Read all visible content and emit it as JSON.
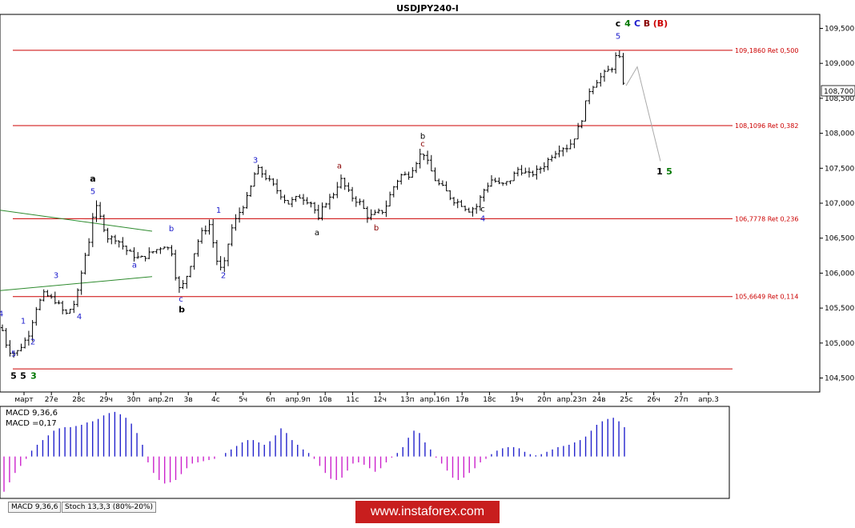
{
  "chart_data": {
    "type": "candlestick",
    "title": "USDJPY240-I",
    "current_price_label": "108,700",
    "y_axis": {
      "ylim": [
        104.3,
        109.7
      ],
      "ticks": [
        "109,500",
        "109,000",
        "108,500",
        "108,000",
        "107,500",
        "107,000",
        "106,500",
        "106,000",
        "105,500",
        "105,000",
        "104,500"
      ]
    },
    "x_ticks": [
      "март",
      "27е",
      "28с",
      "29ч",
      "30п",
      "апр.2п",
      "3в",
      "4с",
      "5ч",
      "6п",
      "апр.9п",
      "10в",
      "11с",
      "12ч",
      "13п",
      "апр.16п",
      "17в",
      "18с",
      "19ч",
      "20п",
      "апр.23п",
      "24в",
      "25с",
      "26ч",
      "27п",
      "апр.3"
    ],
    "fib_levels": [
      {
        "label": "109,1860 Ret 0,500",
        "value": 109.186
      },
      {
        "label": "108,1096 Ret 0,382",
        "value": 108.1096
      },
      {
        "label": "106,7778 Ret 0,236",
        "value": 106.7778
      },
      {
        "label": "105,6649 Ret 0,114",
        "value": 105.6649
      },
      {
        "label": "",
        "value": 104.63
      }
    ],
    "price_path": [
      [
        0,
        105.3
      ],
      [
        10,
        104.9
      ],
      [
        20,
        104.85
      ],
      [
        35,
        105.1
      ],
      [
        45,
        105.5
      ],
      [
        55,
        105.7
      ],
      [
        70,
        105.6
      ],
      [
        82,
        105.4
      ],
      [
        95,
        105.6
      ],
      [
        105,
        106.2
      ],
      [
        112,
        106.5
      ],
      [
        118,
        107.0
      ],
      [
        125,
        106.8
      ],
      [
        135,
        106.5
      ],
      [
        145,
        106.5
      ],
      [
        160,
        106.3
      ],
      [
        175,
        106.2
      ],
      [
        190,
        106.3
      ],
      [
        205,
        106.4
      ],
      [
        215,
        106.3
      ],
      [
        222,
        105.75
      ],
      [
        230,
        105.85
      ],
      [
        240,
        106.2
      ],
      [
        250,
        106.55
      ],
      [
        262,
        106.7
      ],
      [
        270,
        106.2
      ],
      [
        278,
        106.0
      ],
      [
        288,
        106.6
      ],
      [
        298,
        106.85
      ],
      [
        310,
        107.1
      ],
      [
        320,
        107.5
      ],
      [
        330,
        107.4
      ],
      [
        345,
        107.2
      ],
      [
        360,
        107.0
      ],
      [
        375,
        107.1
      ],
      [
        390,
        107.0
      ],
      [
        398,
        106.75
      ],
      [
        405,
        107.0
      ],
      [
        415,
        107.1
      ],
      [
        425,
        107.35
      ],
      [
        438,
        107.1
      ],
      [
        450,
        107.0
      ],
      [
        460,
        106.8
      ],
      [
        470,
        106.85
      ],
      [
        480,
        106.9
      ],
      [
        490,
        107.2
      ],
      [
        500,
        107.4
      ],
      [
        510,
        107.4
      ],
      [
        520,
        107.6
      ],
      [
        528,
        107.75
      ],
      [
        535,
        107.55
      ],
      [
        545,
        107.3
      ],
      [
        555,
        107.2
      ],
      [
        565,
        107.05
      ],
      [
        575,
        107.0
      ],
      [
        585,
        106.9
      ],
      [
        595,
        106.95
      ],
      [
        605,
        107.2
      ],
      [
        615,
        107.35
      ],
      [
        625,
        107.25
      ],
      [
        635,
        107.3
      ],
      [
        648,
        107.5
      ],
      [
        660,
        107.4
      ],
      [
        670,
        107.45
      ],
      [
        680,
        107.55
      ],
      [
        690,
        107.7
      ],
      [
        700,
        107.8
      ],
      [
        710,
        107.8
      ],
      [
        720,
        108.0
      ],
      [
        728,
        108.25
      ],
      [
        735,
        108.6
      ],
      [
        745,
        108.75
      ],
      [
        755,
        108.85
      ],
      [
        765,
        108.95
      ],
      [
        772,
        109.19
      ],
      [
        778,
        108.75
      ],
      [
        782,
        108.68
      ]
    ],
    "projection": [
      [
        782,
        108.68
      ],
      [
        796,
        108.95
      ],
      [
        825,
        107.6
      ]
    ],
    "wave_labels": [
      {
        "text": "5",
        "color": "#000",
        "x": 17,
        "v": 104.49,
        "bold": true
      },
      {
        "text": "5",
        "color": "#000",
        "x": 29,
        "v": 104.49,
        "bold": true
      },
      {
        "text": "3",
        "color": "#007700",
        "x": 42,
        "v": 104.49,
        "bold": true
      },
      {
        "text": "5",
        "color": "#1a1acc",
        "x": 17,
        "v": 104.81
      },
      {
        "text": "4",
        "color": "#1a1acc",
        "x": 1,
        "v": 105.38
      },
      {
        "text": "1",
        "color": "#1a1acc",
        "x": 29,
        "v": 105.28
      },
      {
        "text": "2",
        "color": "#1a1acc",
        "x": 41,
        "v": 104.98
      },
      {
        "text": "3",
        "color": "#1a1acc",
        "x": 70,
        "v": 105.93
      },
      {
        "text": "4",
        "color": "#1a1acc",
        "x": 99,
        "v": 105.34
      },
      {
        "text": "5",
        "color": "#1a1acc",
        "x": 116,
        "v": 107.13
      },
      {
        "text": "a",
        "color": "#000",
        "x": 116,
        "v": 107.31,
        "bold": true
      },
      {
        "text": "a",
        "color": "#1a1acc",
        "x": 168,
        "v": 106.08
      },
      {
        "text": "b",
        "color": "#1a1acc",
        "x": 214,
        "v": 106.6
      },
      {
        "text": "c",
        "color": "#1a1acc",
        "x": 226,
        "v": 105.59
      },
      {
        "text": "b",
        "color": "#000",
        "x": 227,
        "v": 105.44,
        "bold": true
      },
      {
        "text": "1",
        "color": "#1a1acc",
        "x": 273,
        "v": 106.86
      },
      {
        "text": "2",
        "color": "#1a1acc",
        "x": 279,
        "v": 105.93
      },
      {
        "text": "3",
        "color": "#1a1acc",
        "x": 319,
        "v": 107.58
      },
      {
        "text": "a",
        "color": "#000",
        "x": 396,
        "v": 106.54
      },
      {
        "text": "a",
        "color": "#880000",
        "x": 424,
        "v": 107.5
      },
      {
        "text": "b",
        "color": "#880000",
        "x": 470,
        "v": 106.61
      },
      {
        "text": "b",
        "color": "#000",
        "x": 528,
        "v": 107.92
      },
      {
        "text": "c",
        "color": "#880000",
        "x": 528,
        "v": 107.81
      },
      {
        "text": "c",
        "color": "#000",
        "x": 603,
        "v": 106.88
      },
      {
        "text": "4",
        "color": "#1a1acc",
        "x": 603,
        "v": 106.74
      },
      {
        "text": "5",
        "color": "#1a1acc",
        "x": 772,
        "v": 109.35
      },
      {
        "text": "c",
        "color": "#000",
        "x": 772,
        "v": 109.53,
        "bold": true
      },
      {
        "text": "4",
        "color": "#007700",
        "x": 784,
        "v": 109.53,
        "bold": true
      },
      {
        "text": "C",
        "color": "#1a1acc",
        "x": 796,
        "v": 109.53,
        "bold": true
      },
      {
        "text": "B",
        "color": "#880000",
        "x": 808,
        "v": 109.53,
        "bold": true
      },
      {
        "text": "(B)",
        "color": "#cc0000",
        "x": 825,
        "v": 109.53,
        "bold": true
      },
      {
        "text": "1",
        "color": "#000",
        "x": 824,
        "v": 107.41,
        "bold": true
      },
      {
        "text": "5",
        "color": "#007700",
        "x": 836,
        "v": 107.41,
        "bold": true
      }
    ],
    "trendlines": [
      {
        "color": "#2d8a2d",
        "from": [
          0,
          106.9
        ],
        "to": [
          190,
          106.6
        ]
      },
      {
        "color": "#2d8a2d",
        "from": [
          0,
          105.75
        ],
        "to": [
          190,
          105.95
        ]
      }
    ],
    "macd": {
      "label": "MACD 9,36,6",
      "value_label": "MACD =0,17",
      "ylim": [
        -0.35,
        0.42
      ],
      "values": [
        -0.3,
        -0.22,
        -0.14,
        -0.08,
        -0.02,
        0.05,
        0.1,
        0.14,
        0.18,
        0.22,
        0.24,
        0.25,
        0.25,
        0.26,
        0.27,
        0.29,
        0.3,
        0.32,
        0.35,
        0.37,
        0.38,
        0.36,
        0.33,
        0.28,
        0.2,
        0.1,
        -0.05,
        -0.14,
        -0.2,
        -0.23,
        -0.22,
        -0.2,
        -0.15,
        -0.1,
        -0.06,
        -0.05,
        -0.04,
        -0.03,
        -0.02,
        0.0,
        0.03,
        0.06,
        0.09,
        0.12,
        0.14,
        0.14,
        0.12,
        0.1,
        0.13,
        0.18,
        0.24,
        0.2,
        0.14,
        0.1,
        0.06,
        0.03,
        -0.02,
        -0.08,
        -0.14,
        -0.19,
        -0.2,
        -0.18,
        -0.12,
        -0.06,
        -0.05,
        -0.07,
        -0.1,
        -0.13,
        -0.1,
        -0.05,
        -0.01,
        0.03,
        0.08,
        0.16,
        0.22,
        0.2,
        0.12,
        0.06,
        -0.01,
        -0.06,
        -0.12,
        -0.18,
        -0.2,
        -0.18,
        -0.14,
        -0.1,
        -0.05,
        -0.02,
        0.02,
        0.05,
        0.07,
        0.08,
        0.08,
        0.07,
        0.04,
        0.02,
        0.01,
        0.02,
        0.04,
        0.06,
        0.08,
        0.09,
        0.1,
        0.12,
        0.14,
        0.17,
        0.22,
        0.27,
        0.3,
        0.32,
        0.33,
        0.3,
        0.25
      ],
      "positive_color": "#2222cc",
      "negative_color": "#cc22cc"
    }
  },
  "tabs": [
    "MACD 9,36,6",
    "Stoch 13,3,3 (80%-20%)"
  ],
  "watermark": "www.instaforex.com"
}
